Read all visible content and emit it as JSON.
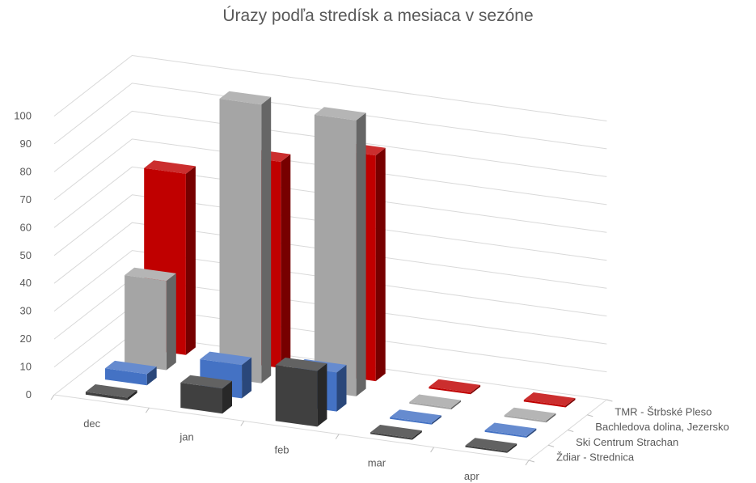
{
  "chart_data": {
    "type": "bar",
    "subtype": "3d-column",
    "title": "Úrazy podľa stredísk a mesiaca v sezóne",
    "categories": [
      "dec",
      "jan",
      "feb",
      "mar",
      "apr"
    ],
    "series": [
      {
        "name": "TMR - Štrbské Pleso",
        "color": "#c00000",
        "values": [
          65,
          74,
          81,
          0,
          0
        ]
      },
      {
        "name": "Bachledova dolina, Jezersko",
        "color": "#a5a5a5",
        "values": [
          32,
          100,
          99,
          0,
          0
        ]
      },
      {
        "name": "Ski Centrum Strachan",
        "color": "#4472c4",
        "values": [
          4,
          12,
          14,
          0,
          0
        ]
      },
      {
        "name": "Ždiar - Strednica",
        "color": "#404040",
        "values": [
          1,
          9,
          20,
          0,
          0
        ]
      }
    ],
    "ylim": [
      0,
      100
    ],
    "yticks": [
      "0",
      "10",
      "20",
      "30",
      "40",
      "50",
      "60",
      "70",
      "80",
      "90",
      "100"
    ],
    "grid": true,
    "legend": "right, along depth axis"
  }
}
